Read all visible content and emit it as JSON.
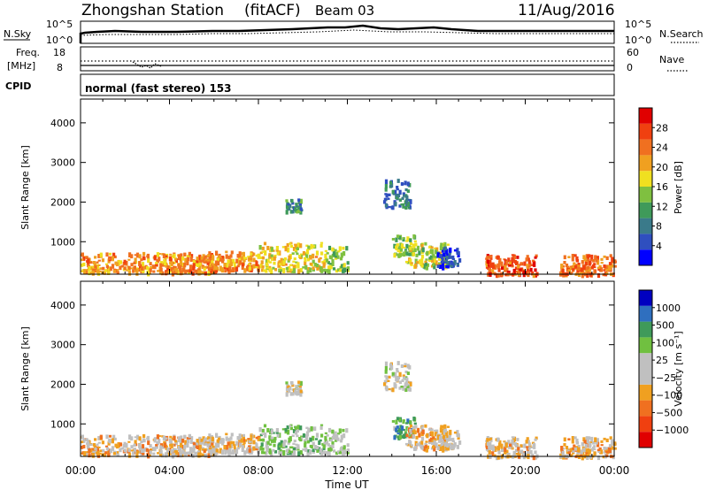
{
  "header": {
    "station": "Zhongshan Station",
    "mode": "(fitACF)",
    "beam": "Beam 03",
    "date": "11/Aug/2016"
  },
  "strip_nsky": {
    "label": "N.Sky",
    "left_ticks": [
      "10^5",
      "10^0"
    ],
    "right_ticks": [
      "10^5",
      "10^0"
    ],
    "right_label": "N.Search"
  },
  "strip_freq": {
    "label_line1": "Freq.",
    "label_line2": "[MHz]",
    "left_ticks": [
      "18",
      "8"
    ],
    "right_ticks": [
      "60",
      "0"
    ],
    "right_label": "Nave"
  },
  "strip_cpid": {
    "label": "CPID",
    "text": "normal (fast stereo) 153"
  },
  "colors": {
    "power_scale": [
      "#0000ff",
      "#2f4fbf",
      "#3a7a8a",
      "#3f9a5a",
      "#7fc040",
      "#f0e020",
      "#f0a020",
      "#f07020",
      "#f04010",
      "#e00000"
    ],
    "velocity_scale": [
      "#e00000",
      "#f04010",
      "#f07020",
      "#f0a020",
      "#c0c0c0",
      "#c0c0c0",
      "#70c040",
      "#3f9a5a",
      "#2f6fbf",
      "#0000c0"
    ]
  },
  "chart_data": [
    {
      "type": "heatmap",
      "name": "power",
      "ylabel": "Slant Range [km]",
      "xlabel": "",
      "yticks": [
        "1000",
        "2000",
        "3000",
        "4000"
      ],
      "ylim": [
        180,
        4600
      ],
      "xlim": [
        0,
        24
      ],
      "colorbar_label": "Power [dB]",
      "colorbar_ticks": [
        "4",
        "8",
        "12",
        "16",
        "20",
        "24",
        "28"
      ],
      "colorbar_range": [
        0,
        32
      ],
      "clusters": [
        {
          "t": [
            0.0,
            6.0
          ],
          "r": [
            250,
            750
          ],
          "value": 22
        },
        {
          "t": [
            5.5,
            8.0
          ],
          "r": [
            300,
            800
          ],
          "value": 22
        },
        {
          "t": [
            8.0,
            11.0
          ],
          "r": [
            300,
            1000
          ],
          "value": 18
        },
        {
          "t": [
            9.2,
            9.9
          ],
          "r": [
            1800,
            2100
          ],
          "value": 10
        },
        {
          "t": [
            11.0,
            12.0
          ],
          "r": [
            300,
            900
          ],
          "value": 14
        },
        {
          "t": [
            14.0,
            15.0
          ],
          "r": [
            700,
            1200
          ],
          "value": 14
        },
        {
          "t": [
            13.6,
            14.8
          ],
          "r": [
            1900,
            2600
          ],
          "value": 8
        },
        {
          "t": [
            14.6,
            16.5
          ],
          "r": [
            400,
            1000
          ],
          "value": 16
        },
        {
          "t": [
            16.0,
            17.0
          ],
          "r": [
            400,
            900
          ],
          "value": 5
        },
        {
          "t": [
            18.2,
            20.5
          ],
          "r": [
            200,
            700
          ],
          "value": 26
        },
        {
          "t": [
            21.5,
            24.0
          ],
          "r": [
            200,
            700
          ],
          "value": 24
        }
      ]
    },
    {
      "type": "heatmap",
      "name": "velocity",
      "ylabel": "Slant Range [km]",
      "xlabel": "Time UT",
      "xticks": [
        "00:00",
        "04:00",
        "08:00",
        "12:00",
        "16:00",
        "20:00",
        "00:00"
      ],
      "yticks": [
        "1000",
        "2000",
        "3000",
        "4000"
      ],
      "ylim": [
        180,
        4600
      ],
      "xlim": [
        0,
        24
      ],
      "colorbar_label": "Velocity [m s⁻¹]",
      "colorbar_ticks": [
        "1000",
        "500",
        "100",
        "25",
        "−25",
        "−100",
        "−500",
        "−1000"
      ],
      "colorbar_range": [
        -1200,
        1200
      ],
      "clusters": [
        {
          "t": [
            0.0,
            6.0
          ],
          "r": [
            250,
            750
          ],
          "value": -250
        },
        {
          "t": [
            5.5,
            8.0
          ],
          "r": [
            300,
            800
          ],
          "value": -200
        },
        {
          "t": [
            8.0,
            11.0
          ],
          "r": [
            300,
            1000
          ],
          "value": 300
        },
        {
          "t": [
            9.2,
            9.9
          ],
          "r": [
            1800,
            2100
          ],
          "value": 0
        },
        {
          "t": [
            11.0,
            12.0
          ],
          "r": [
            300,
            900
          ],
          "value": 100
        },
        {
          "t": [
            14.0,
            15.0
          ],
          "r": [
            700,
            1200
          ],
          "value": 500
        },
        {
          "t": [
            13.6,
            14.8
          ],
          "r": [
            1900,
            2600
          ],
          "value": 0
        },
        {
          "t": [
            14.6,
            16.5
          ],
          "r": [
            400,
            1000
          ],
          "value": -300
        },
        {
          "t": [
            16.0,
            17.0
          ],
          "r": [
            400,
            900
          ],
          "value": -100
        },
        {
          "t": [
            18.2,
            20.5
          ],
          "r": [
            200,
            700
          ],
          "value": -200
        },
        {
          "t": [
            21.5,
            24.0
          ],
          "r": [
            200,
            700
          ],
          "value": -300
        }
      ]
    }
  ]
}
